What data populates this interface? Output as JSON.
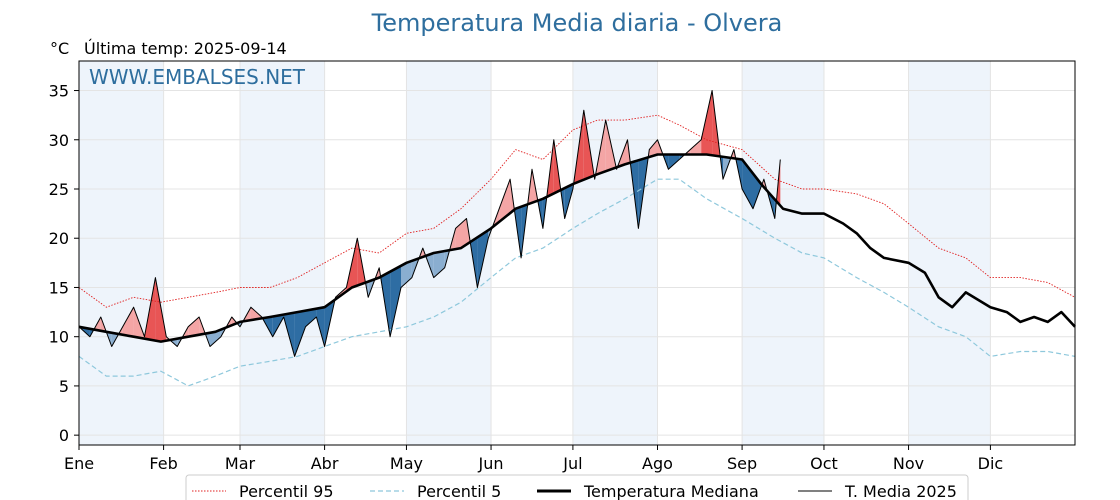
{
  "chart_data": {
    "type": "line",
    "title": "Temperatura Media diaria - Olvera",
    "unit_label": "°C",
    "subtitle": "Última temp: 2025-09-14",
    "watermark": "WWW.EMBALSES.NET",
    "ylim": [
      -1,
      38
    ],
    "yticks": [
      0,
      5,
      10,
      15,
      20,
      25,
      30,
      35
    ],
    "x_range_days": [
      0,
      365
    ],
    "month_labels": [
      "Ene",
      "Feb",
      "Mar",
      "Abr",
      "May",
      "Jun",
      "Jul",
      "Ago",
      "Sep",
      "Oct",
      "Nov",
      "Dic"
    ],
    "month_start_days": [
      0,
      31,
      59,
      90,
      120,
      151,
      181,
      212,
      243,
      273,
      304,
      334
    ],
    "grid": true,
    "legend_position": "bottom",
    "colors": {
      "p95": "#e02020",
      "p5": "#8ec8dc",
      "median": "#000000",
      "current": "#000000",
      "above_fill": "#f4a5a5",
      "above_fill_strong": "#e85555",
      "below_fill": "#8aaed0",
      "below_fill_strong": "#2e6da3",
      "band_fill": "#eef4fb",
      "title": "#2e6e9e"
    },
    "series": [
      {
        "key": "p95",
        "name": "Percentil 95",
        "style": "dotted",
        "x": [
          0,
          10,
          20,
          30,
          40,
          50,
          59,
          70,
          80,
          90,
          100,
          110,
          120,
          130,
          140,
          151,
          160,
          170,
          181,
          190,
          200,
          212,
          220,
          230,
          243,
          255,
          265,
          273,
          285,
          295,
          304,
          315,
          325,
          334,
          345,
          355,
          365
        ],
        "y": [
          15,
          13,
          14,
          13.5,
          14,
          14.5,
          15,
          15,
          16,
          17.5,
          19,
          18.5,
          20.5,
          21,
          23,
          26,
          29,
          28,
          31,
          32,
          32,
          32.5,
          31.5,
          30,
          29,
          26,
          25,
          25,
          24.5,
          23.5,
          21.5,
          19,
          18,
          16,
          16,
          15.5,
          14
        ]
      },
      {
        "key": "p5",
        "name": "Percentil 5",
        "style": "dashed",
        "x": [
          0,
          10,
          20,
          30,
          40,
          50,
          59,
          70,
          80,
          90,
          100,
          110,
          120,
          130,
          140,
          151,
          160,
          170,
          181,
          190,
          200,
          212,
          220,
          230,
          243,
          255,
          265,
          273,
          285,
          295,
          304,
          315,
          325,
          334,
          345,
          355,
          365
        ],
        "y": [
          8,
          6,
          6,
          6.5,
          5,
          6,
          7,
          7.5,
          8,
          9,
          10,
          10.5,
          11,
          12,
          13.5,
          16,
          18,
          19,
          21,
          22.5,
          24,
          26,
          26,
          24,
          22,
          20,
          18.5,
          18,
          16,
          14.5,
          13,
          11,
          10,
          8,
          8.5,
          8.5,
          8
        ]
      },
      {
        "key": "median",
        "name": "Temperatura Mediana",
        "style": "solid-thick",
        "x": [
          0,
          10,
          20,
          30,
          40,
          50,
          59,
          70,
          80,
          90,
          100,
          110,
          120,
          130,
          140,
          151,
          160,
          170,
          181,
          190,
          200,
          212,
          220,
          230,
          243,
          250,
          258,
          265,
          273,
          280,
          285,
          290,
          295,
          304,
          310,
          315,
          320,
          325,
          334,
          340,
          345,
          350,
          355,
          360,
          365
        ],
        "y": [
          11,
          10.5,
          10,
          9.5,
          10,
          10.5,
          11.5,
          12,
          12.5,
          13,
          15,
          16,
          17.5,
          18.5,
          19,
          21,
          23,
          24,
          25.5,
          26.5,
          27.5,
          28.5,
          28.5,
          28.5,
          28,
          25.5,
          23,
          22.5,
          22.5,
          21.5,
          20.5,
          19,
          18,
          17.5,
          16.5,
          14,
          13,
          14.5,
          13,
          12.5,
          11.5,
          12,
          11.5,
          12.5,
          11
        ]
      },
      {
        "key": "current",
        "name": "T. Media 2025",
        "style": "solid",
        "x": [
          0,
          4,
          8,
          12,
          16,
          20,
          24,
          28,
          32,
          36,
          40,
          44,
          48,
          52,
          56,
          59,
          63,
          67,
          71,
          75,
          79,
          83,
          87,
          90,
          94,
          98,
          102,
          106,
          110,
          114,
          118,
          122,
          126,
          130,
          134,
          138,
          142,
          146,
          150,
          154,
          158,
          162,
          166,
          170,
          174,
          178,
          181,
          185,
          189,
          193,
          197,
          201,
          205,
          209,
          212,
          216,
          220,
          224,
          228,
          232,
          236,
          240,
          243,
          247,
          251,
          255,
          257
        ],
        "y": [
          11,
          10,
          12,
          9,
          11,
          13,
          10,
          16,
          10,
          9,
          11,
          12,
          9,
          10,
          12,
          11,
          13,
          12,
          10,
          12,
          8,
          11,
          12,
          9,
          14,
          15,
          20,
          14,
          17,
          10,
          15,
          16,
          19,
          16,
          17,
          21,
          22,
          15,
          20,
          23,
          26,
          18,
          27,
          21,
          30,
          22,
          25,
          33,
          26,
          32,
          27,
          30,
          21,
          29,
          30,
          27,
          28,
          29,
          30,
          35,
          26,
          29,
          25,
          23,
          26,
          22,
          28
        ]
      }
    ]
  }
}
